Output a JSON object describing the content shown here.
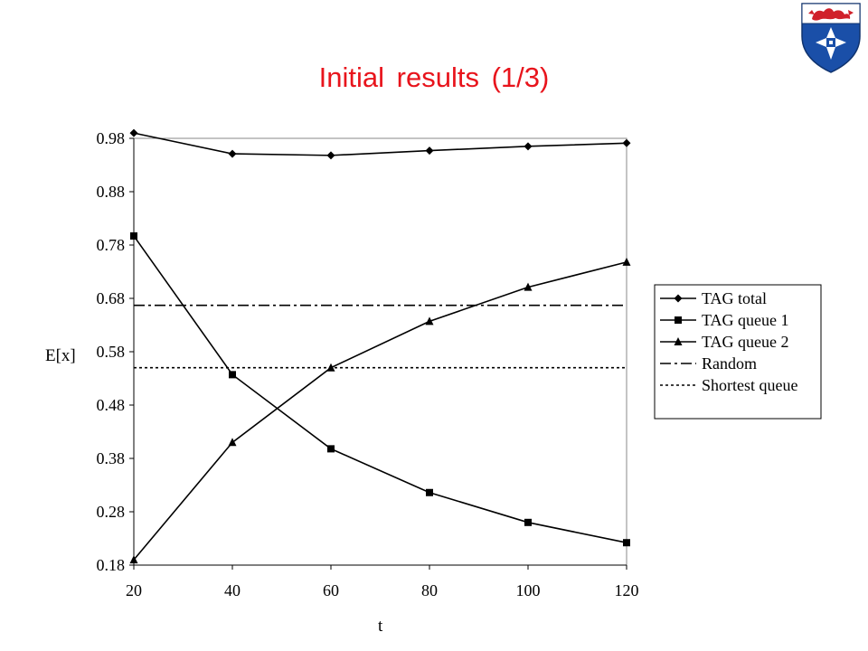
{
  "slide": {
    "title": "Initial results (1/3)"
  },
  "logo": {
    "icon": "university-crest-icon",
    "colors": {
      "field": "#1a4fa8",
      "chief": "#ffffff",
      "lion": "#d0202a",
      "cross": "#ffffff"
    }
  },
  "chart_data": {
    "type": "line",
    "title": "",
    "xlabel": "t",
    "ylabel": "E[x]",
    "x": [
      20,
      40,
      60,
      80,
      100,
      120
    ],
    "xticks": [
      "20",
      "40",
      "60",
      "80",
      "100",
      "120"
    ],
    "yticks": [
      "0.18",
      "0.28",
      "0.38",
      "0.48",
      "0.58",
      "0.68",
      "0.78",
      "0.88",
      "0.98"
    ],
    "xlim": [
      20,
      120
    ],
    "ylim": [
      0.18,
      0.98
    ],
    "grid": false,
    "legend_position": "right",
    "series": [
      {
        "name": "TAG total",
        "marker": "diamond",
        "dash": "solid",
        "values": [
          0.99,
          0.951,
          0.948,
          0.957,
          0.965,
          0.971
        ]
      },
      {
        "name": "TAG queue 1",
        "marker": "square",
        "dash": "solid",
        "values": [
          0.797,
          0.537,
          0.398,
          0.316,
          0.26,
          0.222
        ]
      },
      {
        "name": "TAG queue 2",
        "marker": "triangle",
        "dash": "solid",
        "values": [
          0.19,
          0.41,
          0.55,
          0.637,
          0.701,
          0.748
        ]
      },
      {
        "name": "Random",
        "marker": "none",
        "dash": "dashdot",
        "values": [
          0.667,
          0.667,
          0.667,
          0.667,
          0.667,
          0.667
        ]
      },
      {
        "name": "Shortest queue",
        "marker": "none",
        "dash": "dotted",
        "values": [
          0.55,
          0.55,
          0.55,
          0.55,
          0.55,
          0.55
        ]
      }
    ]
  }
}
